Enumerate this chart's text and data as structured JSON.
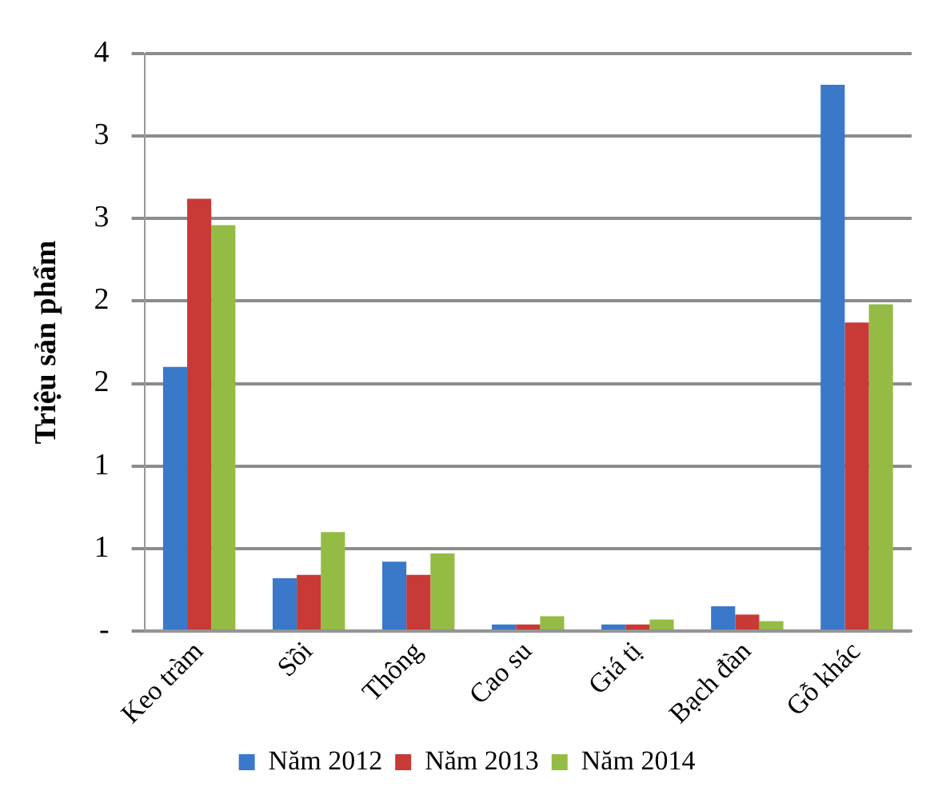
{
  "chart_data": {
    "type": "bar",
    "ylabel": "Triệu sản phẩm",
    "categories": [
      "Keo tràm",
      "Sồi",
      "Thông",
      "Cao su",
      "Giá tị",
      "Bạch đàn",
      "Gỗ khác"
    ],
    "series": [
      {
        "name": "Năm 2012",
        "color": "#3a78c9",
        "values": [
          1.6,
          0.32,
          0.42,
          0.04,
          0.04,
          0.15,
          3.31
        ]
      },
      {
        "name": "Năm 2013",
        "color": "#c83a36",
        "values": [
          2.62,
          0.34,
          0.34,
          0.04,
          0.04,
          0.1,
          1.87
        ]
      },
      {
        "name": "Năm 2014",
        "color": "#94bc45",
        "values": [
          2.46,
          0.6,
          0.47,
          0.09,
          0.07,
          0.06,
          1.98
        ]
      }
    ],
    "ylim": [
      0,
      3.5
    ],
    "yticks": [
      {
        "value": 0,
        "label": "-"
      },
      {
        "value": 0.5,
        "label": "1"
      },
      {
        "value": 1,
        "label": "1"
      },
      {
        "value": 1.5,
        "label": "2"
      },
      {
        "value": 2,
        "label": "2"
      },
      {
        "value": 2.5,
        "label": "3"
      },
      {
        "value": 3,
        "label": "3"
      },
      {
        "value": 3.5,
        "label": "4"
      }
    ],
    "grid": "y",
    "legend": "bottom"
  }
}
